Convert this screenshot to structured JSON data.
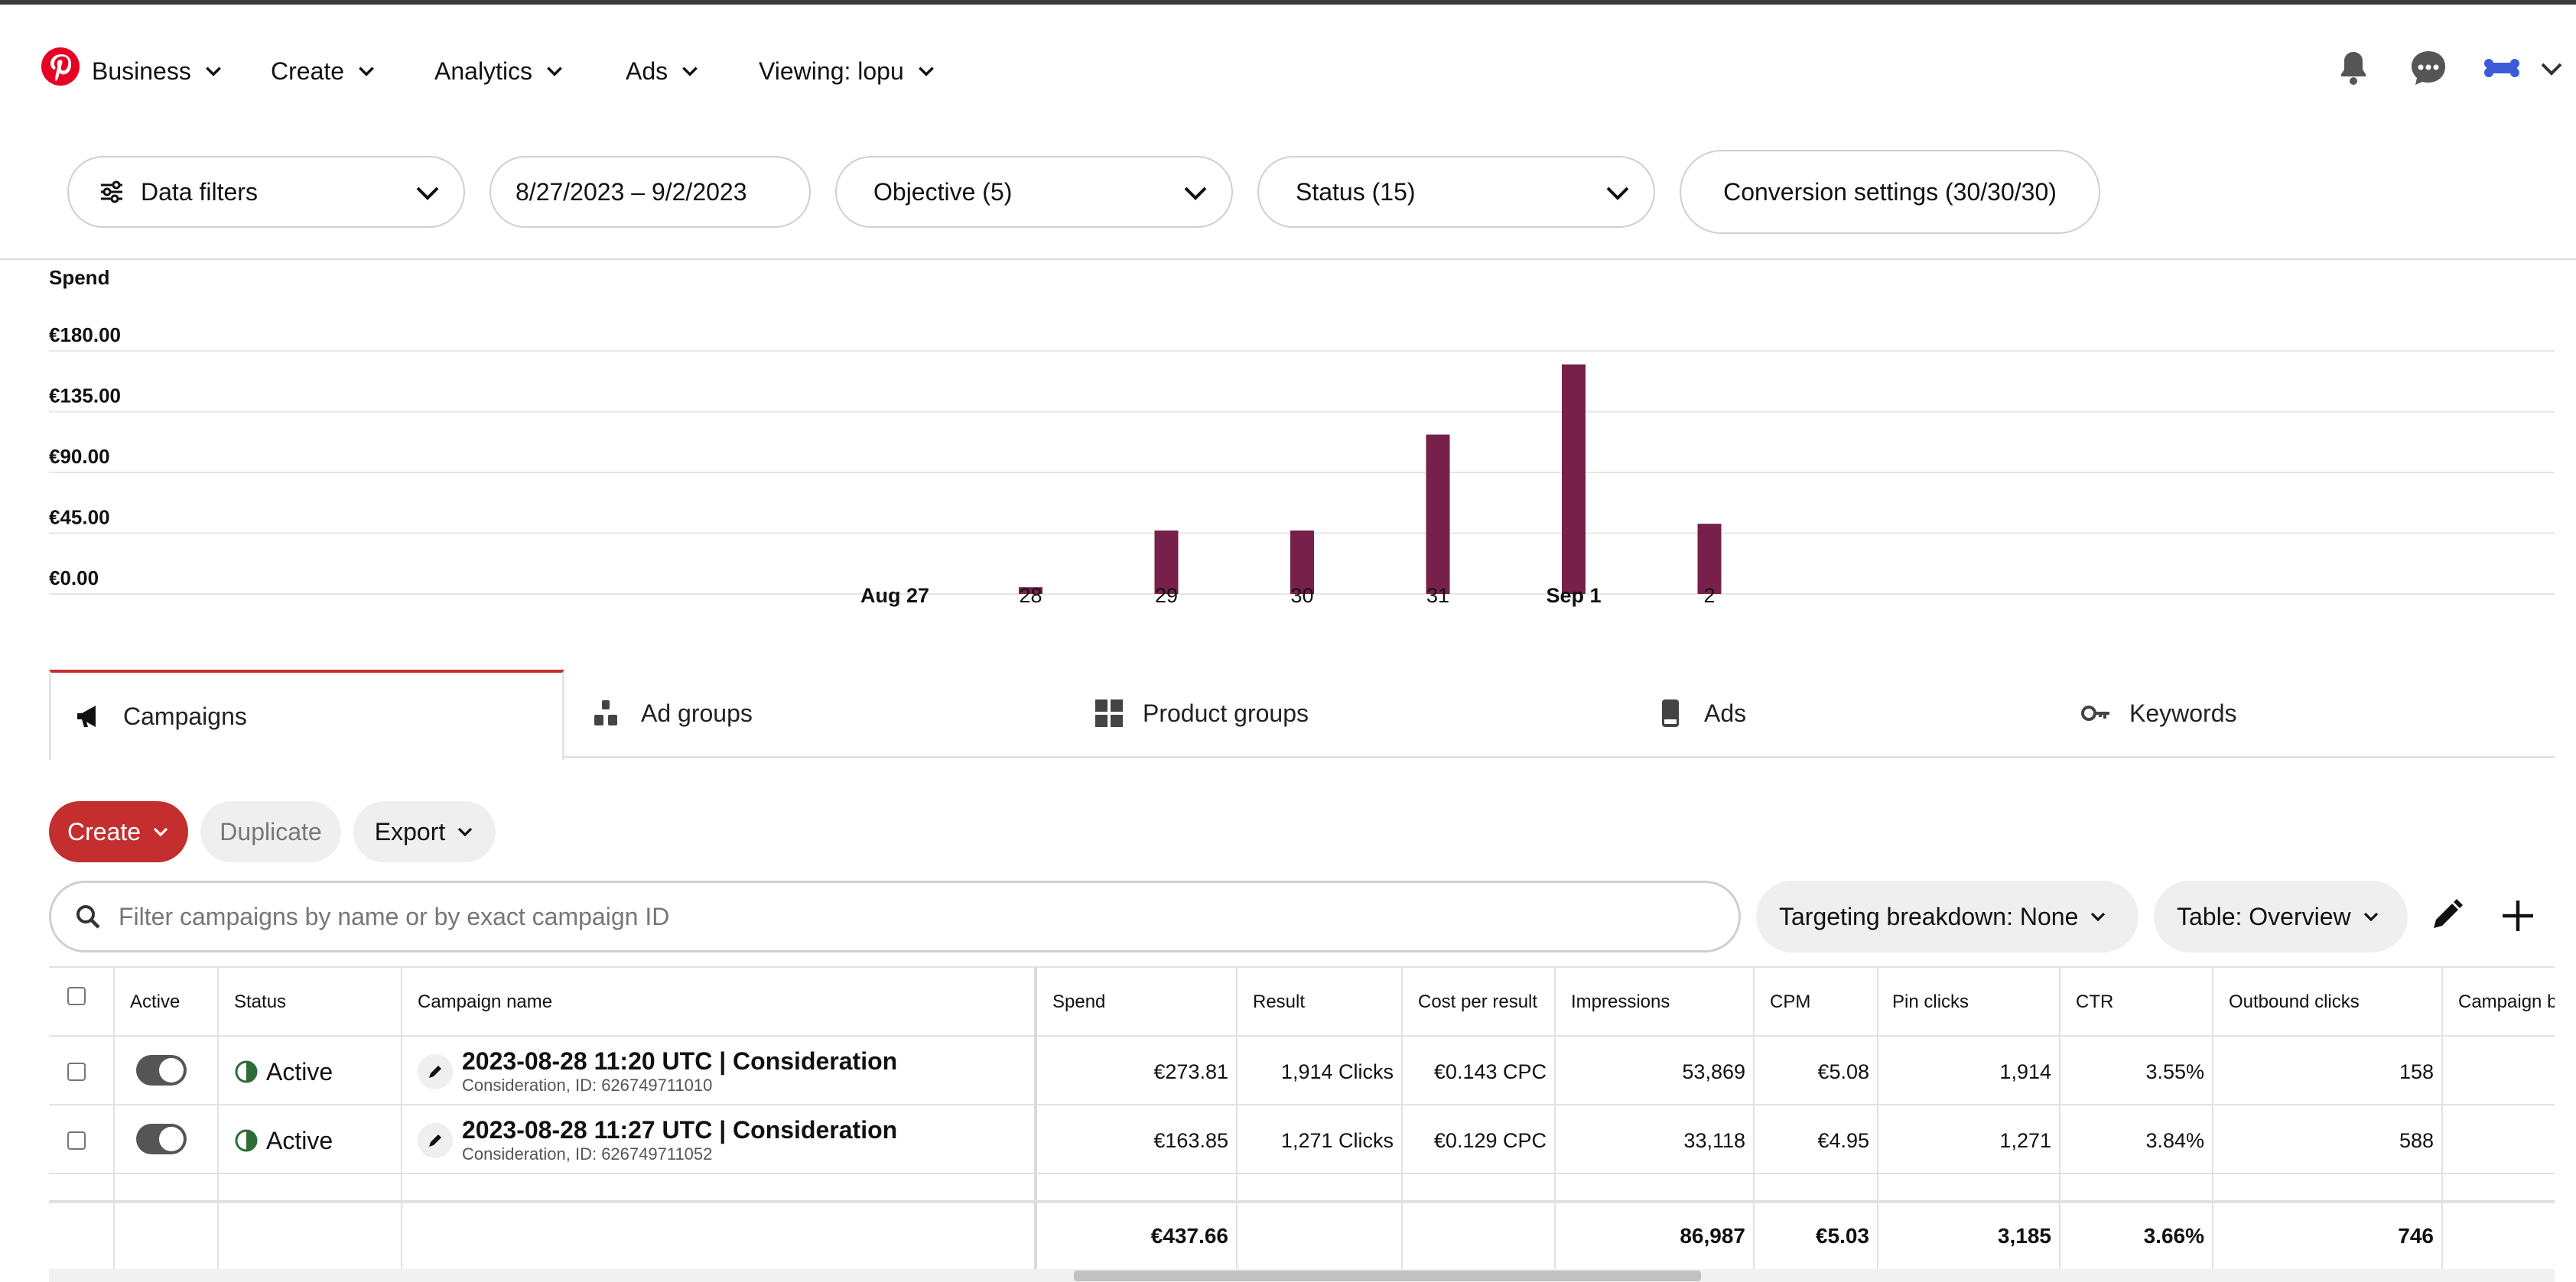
{
  "nav": {
    "business": "Business",
    "create": "Create",
    "analytics": "Analytics",
    "ads": "Ads",
    "viewing": "Viewing: lopu"
  },
  "filters": {
    "data_filters": "Data filters",
    "date_range": "8/27/2023 – 9/2/2023",
    "objective": "Objective (5)",
    "status": "Status (15)",
    "conversion": "Conversion settings (30/30/30)"
  },
  "chart_data": {
    "type": "bar",
    "ylabel": "Spend",
    "yticks": [
      "€0.00",
      "€45.00",
      "€90.00",
      "€135.00",
      "€180.00"
    ],
    "ylim": [
      0,
      180
    ],
    "categories": [
      "Aug 27",
      "28",
      "29",
      "30",
      "31",
      "Sep 1",
      "2"
    ],
    "bold_categories": [
      "Aug 27",
      "Sep 1"
    ],
    "values": [
      0,
      5,
      47,
      47,
      118,
      170,
      52
    ],
    "color": "#76204a",
    "grid": true
  },
  "tabs": [
    {
      "label": "Campaigns",
      "icon": "megaphone-icon"
    },
    {
      "label": "Ad groups",
      "icon": "ad-groups-icon"
    },
    {
      "label": "Product groups",
      "icon": "grid-icon"
    },
    {
      "label": "Ads",
      "icon": "phone-icon"
    },
    {
      "label": "Keywords",
      "icon": "key-icon"
    }
  ],
  "actions": {
    "create": "Create",
    "duplicate": "Duplicate",
    "export": "Export"
  },
  "search": {
    "placeholder": "Filter campaigns by name or by exact campaign ID"
  },
  "toolbar": {
    "targeting": "Targeting breakdown: None",
    "table": "Table: Overview"
  },
  "table": {
    "headers": {
      "active": "Active",
      "status": "Status",
      "name": "Campaign name",
      "spend": "Spend",
      "result": "Result",
      "cpr": "Cost per result",
      "impressions": "Impressions",
      "cpm": "CPM",
      "pin_clicks": "Pin clicks",
      "ctr": "CTR",
      "outbound": "Outbound clicks",
      "budget": "Campaign b"
    },
    "rows": [
      {
        "status": "Active",
        "name": "2023-08-28 11:20 UTC | Consideration",
        "sub": "Consideration, ID: 626749711010",
        "spend": "€273.81",
        "result": "1,914 Clicks",
        "cpr": "€0.143 CPC",
        "impressions": "53,869",
        "cpm": "€5.08",
        "pin_clicks": "1,914",
        "ctr": "3.55%",
        "outbound": "158"
      },
      {
        "status": "Active",
        "name": "2023-08-28 11:27 UTC | Consideration",
        "sub": "Consideration, ID: 626749711052",
        "spend": "€163.85",
        "result": "1,271 Clicks",
        "cpr": "€0.129 CPC",
        "impressions": "33,118",
        "cpm": "€4.95",
        "pin_clicks": "1,271",
        "ctr": "3.84%",
        "outbound": "588"
      }
    ],
    "totals": {
      "spend": "€437.66",
      "impressions": "86,987",
      "cpm": "€5.03",
      "pin_clicks": "3,185",
      "ctr": "3.66%",
      "outbound": "746"
    }
  },
  "colors": {
    "brand_red": "#c42e2e",
    "bar": "#76204a",
    "status_green": "#2e6b36"
  }
}
